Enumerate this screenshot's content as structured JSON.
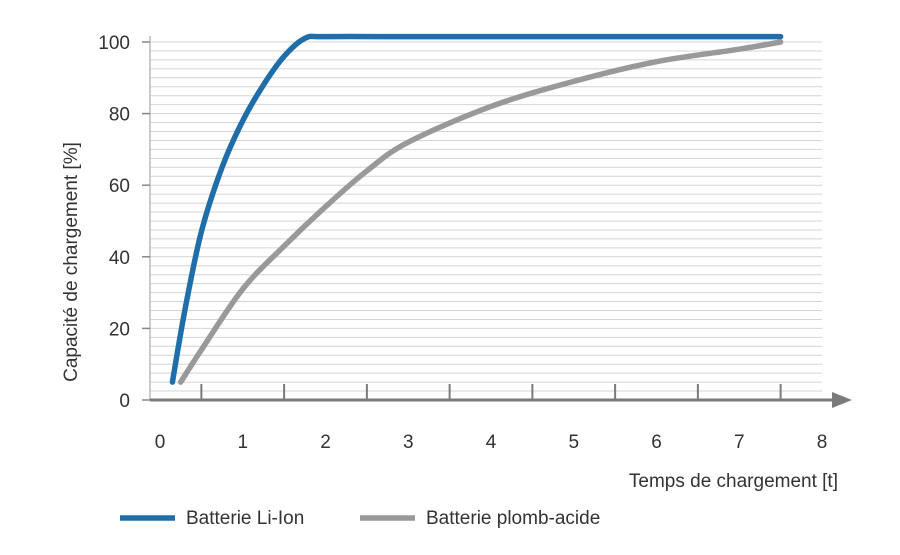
{
  "chart_data": {
    "type": "line",
    "x_label": "Temps de chargement [t]",
    "y_label": "Capacité de chargement [%]",
    "xlim": [
      0,
      8
    ],
    "ylim": [
      0,
      100
    ],
    "xticks": [
      0,
      1,
      2,
      3,
      4,
      5,
      6,
      7,
      8
    ],
    "xminor_ticks": [
      0.5,
      1.5,
      2.5,
      3.5,
      4.5,
      5.5,
      6.5,
      7.5
    ],
    "yticks": [
      0,
      20,
      40,
      60,
      80,
      100
    ],
    "yminor_ticks": [
      0,
      2.5,
      5,
      7.5,
      10,
      12.5,
      15,
      17.5,
      20,
      22.5,
      25,
      27.5,
      30,
      32.5,
      35,
      37.5,
      40,
      42.5,
      45,
      47.5,
      50,
      52.5,
      55,
      57.5,
      60,
      62.5,
      65,
      67.5,
      70,
      72.5,
      75,
      77.5,
      80,
      82.5,
      85,
      87.5,
      90,
      92.5,
      95,
      97.5,
      100
    ],
    "grid": true,
    "legend": "bottom",
    "series": [
      {
        "name": "Batterie Li-Ion",
        "color": "#1f6ea9",
        "x": [
          0.15,
          0.3,
          0.5,
          0.75,
          1,
          1.25,
          1.5,
          1.75,
          2,
          3,
          4,
          5,
          6,
          7,
          7.5
        ],
        "values": [
          5,
          25,
          47,
          65,
          78,
          88,
          96,
          101,
          101.5,
          101.5,
          101.5,
          101.5,
          101.5,
          101.5,
          101.5
        ]
      },
      {
        "name": "Batterie plomb-acide",
        "color": "#999999",
        "x": [
          0.25,
          0.5,
          1,
          1.5,
          2,
          2.5,
          3,
          4,
          5,
          6,
          7,
          7.5
        ],
        "values": [
          5,
          14,
          31,
          43,
          54,
          64,
          72,
          82,
          89,
          94.5,
          98,
          100
        ]
      }
    ]
  }
}
